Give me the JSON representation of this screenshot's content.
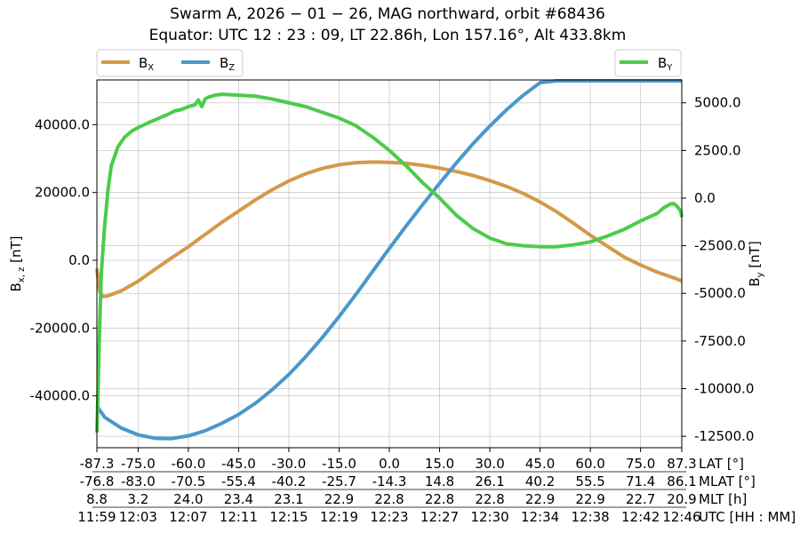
{
  "chart_data": {
    "type": "line",
    "title_line1": "Swarm A,  2026 − 01 − 26,  MAG northward,  orbit #68436",
    "title_line2": "Equator:  UTC 12 : 23 : 09,  LT 22.86h,  Lon 157.16°,  Alt 433.8km",
    "ylabel_left": "B",
    "ylabel_left_sub": "x, z",
    "ylabel_left_unit": " [nT]",
    "ylabel_right": "B",
    "ylabel_right_sub": "y",
    "ylabel_right_unit": " [nT]",
    "x_range": [
      -87.3,
      87.3
    ],
    "ylim_left": [
      -55300,
      53200
    ],
    "ylim_right": [
      -13100,
      6200
    ],
    "left_ticks": [
      -40000,
      -20000,
      0,
      20000,
      40000
    ],
    "left_tick_labels": [
      "-40000.0",
      "-20000.0",
      "0.0",
      "20000.0",
      "40000.0"
    ],
    "right_ticks": [
      -12500,
      -10000,
      -7500,
      -5000,
      -2500,
      0,
      2500,
      5000
    ],
    "right_tick_labels": [
      "-12500.0",
      "-10000.0",
      "-7500.0",
      "-5000.0",
      "-2500.0",
      "0.0",
      "2500.0",
      "5000.0"
    ],
    "grid": true,
    "x_axis_rows": [
      {
        "label": "LAT [°]",
        "values": [
          "-87.3",
          "-75.0",
          "-60.0",
          "-45.0",
          "-30.0",
          "-15.0",
          "0.0",
          "15.0",
          "30.0",
          "45.0",
          "60.0",
          "75.0",
          "87.3"
        ]
      },
      {
        "label": "MLAT [°]",
        "values": [
          "-76.8",
          "-83.0",
          "-70.5",
          "-55.4",
          "-40.2",
          "-25.7",
          "-14.3",
          "14.8",
          "26.1",
          "40.2",
          "55.5",
          "71.4",
          "86.1"
        ]
      },
      {
        "label": "MLT [h]",
        "values": [
          "8.8",
          "3.2",
          "24.0",
          "23.4",
          "23.1",
          "22.9",
          "22.8",
          "22.8",
          "22.8",
          "22.9",
          "22.9",
          "22.7",
          "20.9"
        ]
      },
      {
        "label": "UTC [HH : MM]",
        "values": [
          "11:59",
          "12:03",
          "12:07",
          "12:11",
          "12:15",
          "12:19",
          "12:23",
          "12:27",
          "12:30",
          "12:34",
          "12:38",
          "12:42",
          "12:46"
        ]
      }
    ],
    "tick_lat": [
      -87.3,
      -75,
      -60,
      -45,
      -30,
      -15,
      0,
      15,
      30,
      45,
      60,
      75,
      87.3
    ],
    "legend_left": [
      "B",
      "B"
    ],
    "legend_left_subs": [
      "X",
      "Z"
    ],
    "legend_right": "B",
    "legend_right_sub": "Y",
    "series": [
      {
        "name": "BX",
        "axis": "left",
        "color": "#d4994a",
        "x": [
          -87.3,
          -86.5,
          -85.5,
          -84,
          -80,
          -75,
          -70,
          -65,
          -60,
          -55,
          -50,
          -45,
          -40,
          -35,
          -30,
          -25,
          -20,
          -15,
          -10,
          -5,
          0,
          5,
          10,
          15,
          20,
          25,
          30,
          35,
          40,
          45,
          50,
          55,
          60,
          65,
          70,
          75,
          80,
          85,
          87.3
        ],
        "y": [
          -2500,
          -9000,
          -10700,
          -10500,
          -9000,
          -6200,
          -2700,
          700,
          4000,
          7600,
          11200,
          14500,
          17800,
          20800,
          23400,
          25500,
          27100,
          28200,
          28800,
          29000,
          28900,
          28600,
          28000,
          27200,
          26200,
          25000,
          23500,
          21800,
          19700,
          17200,
          14300,
          10900,
          7400,
          4200,
          1000,
          -1400,
          -3500,
          -5200,
          -6100
        ]
      },
      {
        "name": "BZ",
        "axis": "left",
        "color": "#4a98ca",
        "x": [
          -87.3,
          -85,
          -80,
          -75,
          -70,
          -65,
          -60,
          -55,
          -50,
          -45,
          -40,
          -35,
          -30,
          -25,
          -20,
          -15,
          -10,
          -5,
          0,
          5,
          10,
          15,
          20,
          25,
          30,
          35,
          40,
          45,
          50,
          55,
          60,
          65,
          70,
          75,
          80,
          85,
          87.3
        ],
        "y": [
          -43000,
          -46300,
          -49500,
          -51500,
          -52500,
          -52600,
          -51800,
          -50300,
          -48100,
          -45500,
          -42200,
          -38200,
          -33700,
          -28500,
          -22800,
          -16600,
          -10100,
          -3300,
          3500,
          10100,
          16500,
          22700,
          28700,
          34400,
          39600,
          44400,
          48700,
          52400,
          55300,
          57600,
          59100,
          59700,
          59900,
          59800,
          59500,
          59300,
          58900
        ]
      },
      {
        "name": "BY",
        "axis": "right",
        "color": "#4ccb4c",
        "x": [
          -87.3,
          -87,
          -86.6,
          -86,
          -85,
          -84,
          -83,
          -81,
          -79,
          -77,
          -75,
          -72,
          -70,
          -68,
          -66,
          -64,
          -62,
          -60,
          -58,
          -57,
          -56,
          -55,
          -54,
          -52,
          -50,
          -45,
          -40,
          -35,
          -30,
          -25,
          -20,
          -15,
          -10,
          -5,
          0,
          5,
          10,
          15,
          20,
          25,
          30,
          35,
          40,
          45,
          50,
          55,
          60,
          65,
          70,
          75,
          80,
          82,
          84,
          85,
          86,
          87,
          87.3
        ],
        "y": [
          -12300,
          -10500,
          -7500,
          -4000,
          -1500,
          400,
          1700,
          2700,
          3200,
          3500,
          3700,
          3950,
          4100,
          4250,
          4400,
          4580,
          4650,
          4800,
          4900,
          5150,
          4800,
          5200,
          5300,
          5400,
          5450,
          5400,
          5350,
          5200,
          5000,
          4800,
          4500,
          4200,
          3800,
          3200,
          2500,
          1700,
          800,
          0,
          -900,
          -1600,
          -2100,
          -2400,
          -2500,
          -2550,
          -2550,
          -2450,
          -2300,
          -2000,
          -1650,
          -1200,
          -800,
          -500,
          -300,
          -300,
          -450,
          -700,
          -1000
        ]
      }
    ]
  }
}
